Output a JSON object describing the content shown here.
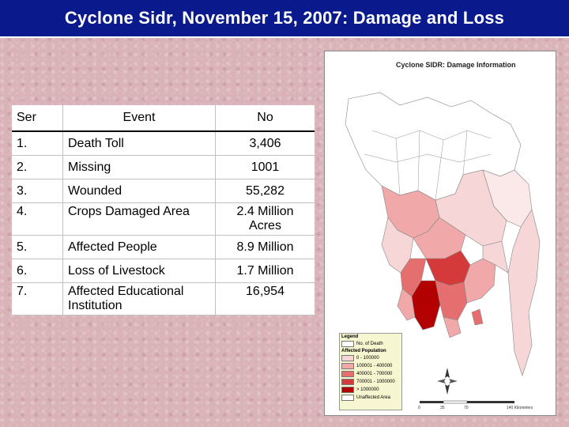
{
  "slide": {
    "title": "Cyclone Sidr, November 15, 2007: Damage and Loss"
  },
  "table": {
    "headers": {
      "ser": "Ser",
      "event": "Event",
      "no": "No"
    },
    "rows": [
      {
        "ser": "1.",
        "event": "Death Toll",
        "no": "3,406"
      },
      {
        "ser": "2.",
        "event": "Missing",
        "no": "1001"
      },
      {
        "ser": "3.",
        "event": "Wounded",
        "no": "55,282"
      },
      {
        "ser": "4.",
        "event": "Crops Damaged Area",
        "no": "2.4 Million Acres"
      },
      {
        "ser": "5.",
        "event": "Affected People",
        "no": "8.9 Million"
      },
      {
        "ser": "6.",
        "event": "Loss of Livestock",
        "no": "1.7 Million"
      },
      {
        "ser": "7.",
        "event": "Affected Educational Institution",
        "no": "16,954"
      }
    ]
  },
  "map": {
    "title": "Cyclone SIDR: Damage Information",
    "legend": {
      "title": "Legend",
      "deaths_label": "No. of Death",
      "population_title": "Affected Population",
      "classes": [
        {
          "label": "0 - 100000",
          "color": "#f6d6d6"
        },
        {
          "label": "100001 - 400000",
          "color": "#f0a8a8"
        },
        {
          "label": "400001 - 700000",
          "color": "#e56f6f"
        },
        {
          "label": "700001 - 1000000",
          "color": "#d43a3a"
        },
        {
          "label": "> 1000000",
          "color": "#b30000"
        },
        {
          "label": "Unaffected Area",
          "color": "#ffffff"
        }
      ]
    },
    "scale": {
      "ticks": [
        "0",
        "35",
        "70"
      ],
      "unit": "140 Kilometers"
    }
  }
}
